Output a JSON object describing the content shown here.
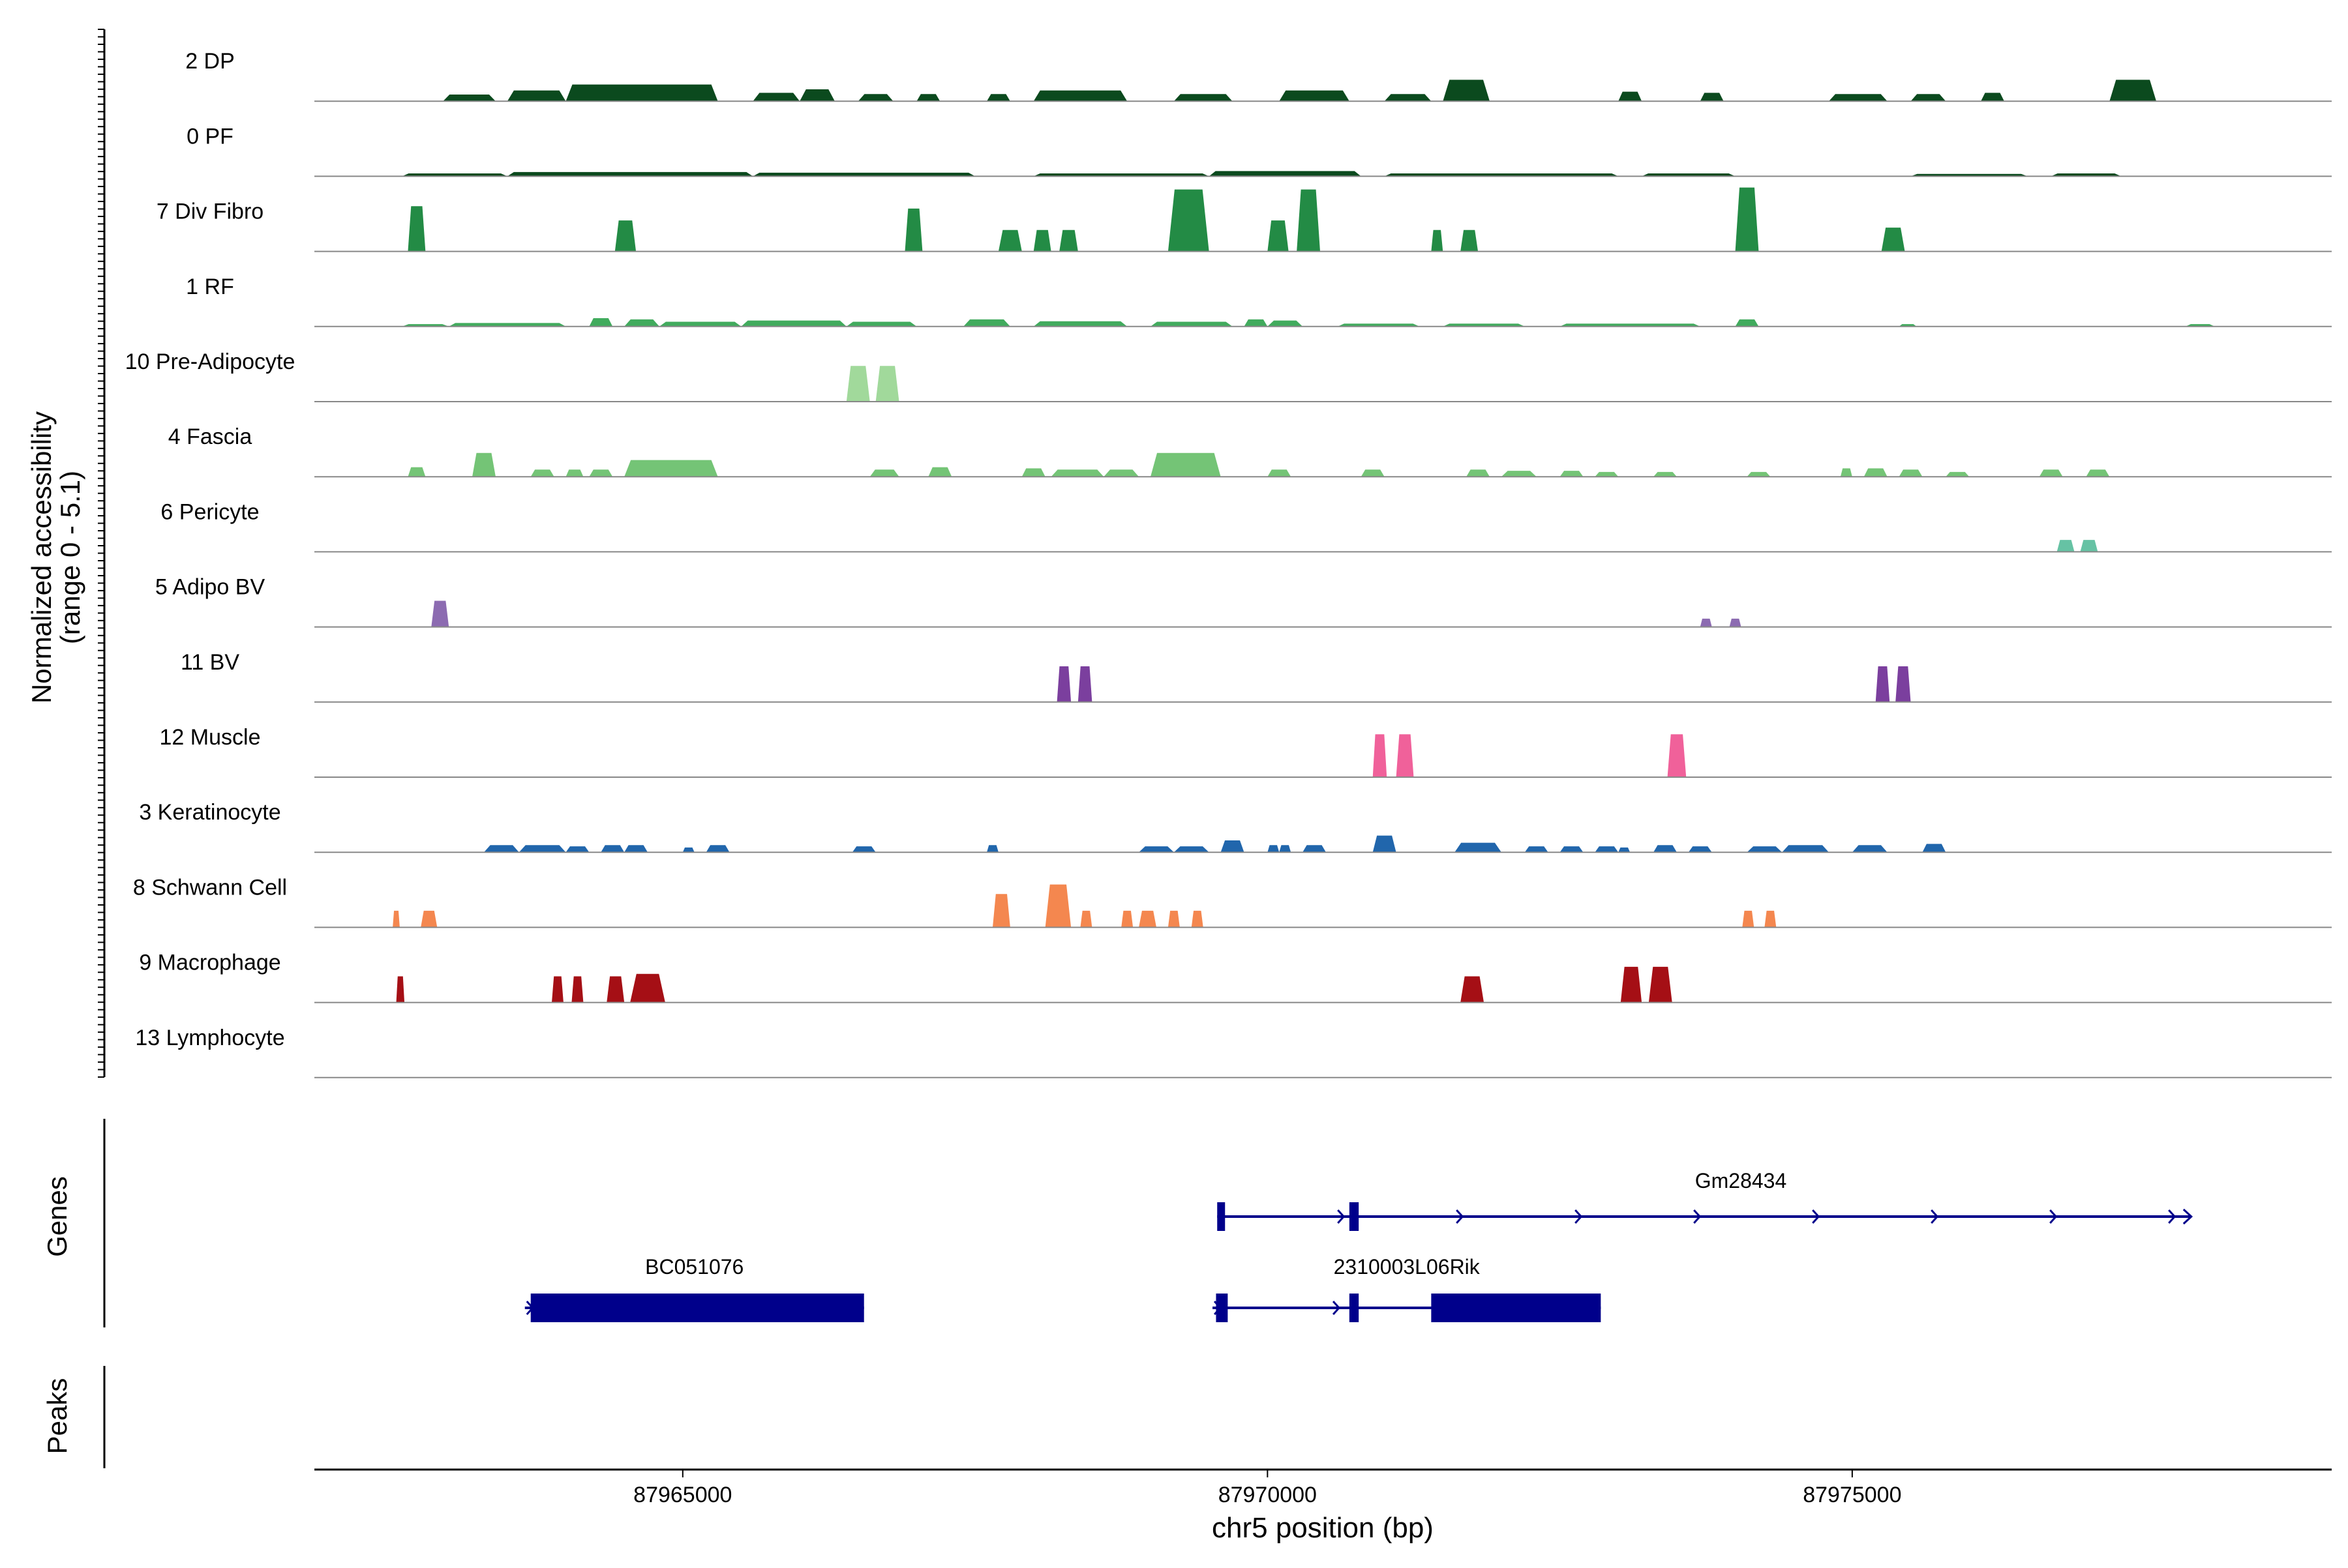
{
  "chart_data": {
    "type": "area",
    "title": "",
    "y_axis_label_line1": "Normalized accessibility",
    "y_axis_label_line2": "(range 0 - 5.1)",
    "ylim": [
      0,
      5.1
    ],
    "x_axis_label": "chr5 position (bp)",
    "xlim": [
      87961850,
      87979100
    ],
    "x_ticks": [
      87965000,
      87970000,
      87975000
    ],
    "x_tick_labels": [
      "87965000",
      "87970000",
      "87975000"
    ],
    "tracks": [
      {
        "name": "2 DP",
        "color": "#0b4a1e",
        "peaks": [
          [
            87962950,
            87963400,
            0.28
          ],
          [
            87963500,
            87964000,
            0.45
          ],
          [
            87964000,
            87965300,
            0.7
          ],
          [
            87965600,
            87966000,
            0.35
          ],
          [
            87966000,
            87966300,
            0.5
          ],
          [
            87966500,
            87966800,
            0.3
          ],
          [
            87967000,
            87967200,
            0.3
          ],
          [
            87967600,
            87967800,
            0.3
          ],
          [
            87968000,
            87968800,
            0.45
          ],
          [
            87969200,
            87969700,
            0.3
          ],
          [
            87970100,
            87970700,
            0.45
          ],
          [
            87971000,
            87971400,
            0.3
          ],
          [
            87971500,
            87971900,
            0.9
          ],
          [
            87973000,
            87973200,
            0.4
          ],
          [
            87973700,
            87973900,
            0.35
          ],
          [
            87974800,
            87975300,
            0.3
          ],
          [
            87975500,
            87975800,
            0.3
          ],
          [
            87976100,
            87976300,
            0.35
          ],
          [
            87977200,
            87977600,
            0.9
          ]
        ]
      },
      {
        "name": "0 PF",
        "color": "#0b4a1e",
        "peaks": [
          [
            87962600,
            87963500,
            0.12
          ],
          [
            87963500,
            87965600,
            0.18
          ],
          [
            87965600,
            87967500,
            0.15
          ],
          [
            87968000,
            87969500,
            0.12
          ],
          [
            87969500,
            87970800,
            0.22
          ],
          [
            87971000,
            87973000,
            0.12
          ],
          [
            87973200,
            87974000,
            0.12
          ],
          [
            87975500,
            87976500,
            0.1
          ],
          [
            87976700,
            87977300,
            0.12
          ]
        ]
      },
      {
        "name": "7 Div Fibro",
        "color": "#238b45",
        "peaks": [
          [
            87962650,
            87962800,
            1.9
          ],
          [
            87964420,
            87964600,
            1.3
          ],
          [
            87966900,
            87967050,
            1.8
          ],
          [
            87967700,
            87967900,
            0.9
          ],
          [
            87968000,
            87968150,
            0.9
          ],
          [
            87968220,
            87968380,
            0.9
          ],
          [
            87969150,
            87969500,
            2.6
          ],
          [
            87970000,
            87970180,
            1.3
          ],
          [
            87970250,
            87970450,
            2.6
          ],
          [
            87971400,
            87971500,
            0.9
          ],
          [
            87971650,
            87971800,
            0.9
          ],
          [
            87974000,
            87974200,
            2.8
          ],
          [
            87975250,
            87975450,
            1.0
          ]
        ]
      },
      {
        "name": "1 RF",
        "color": "#41ab5d",
        "peaks": [
          [
            87962600,
            87963000,
            0.1
          ],
          [
            87963000,
            87964000,
            0.15
          ],
          [
            87964200,
            87964400,
            0.35
          ],
          [
            87964500,
            87964800,
            0.3
          ],
          [
            87964800,
            87965500,
            0.2
          ],
          [
            87965500,
            87966400,
            0.25
          ],
          [
            87966400,
            87967000,
            0.2
          ],
          [
            87967400,
            87967800,
            0.3
          ],
          [
            87968000,
            87968800,
            0.22
          ],
          [
            87969000,
            87969700,
            0.2
          ],
          [
            87969800,
            87970000,
            0.3
          ],
          [
            87970000,
            87970300,
            0.25
          ],
          [
            87970600,
            87971300,
            0.12
          ],
          [
            87971500,
            87972200,
            0.12
          ],
          [
            87972500,
            87973700,
            0.12
          ],
          [
            87974000,
            87974200,
            0.3
          ],
          [
            87975400,
            87975550,
            0.1
          ],
          [
            87977850,
            87978100,
            0.1
          ]
        ]
      },
      {
        "name": "10 Pre-Adipocyte",
        "color": "#a1d99b",
        "peaks": [
          [
            87966400,
            87966600,
            1.5
          ],
          [
            87966650,
            87966850,
            1.5
          ]
        ]
      },
      {
        "name": "4 Fascia",
        "color": "#74c476",
        "peaks": [
          [
            87962650,
            87962800,
            0.4
          ],
          [
            87963200,
            87963400,
            1.0
          ],
          [
            87963700,
            87963900,
            0.3
          ],
          [
            87964000,
            87964150,
            0.3
          ],
          [
            87964200,
            87964400,
            0.3
          ],
          [
            87964500,
            87965300,
            0.7
          ],
          [
            87966600,
            87966850,
            0.3
          ],
          [
            87967100,
            87967300,
            0.4
          ],
          [
            87967900,
            87968100,
            0.35
          ],
          [
            87968150,
            87968600,
            0.3
          ],
          [
            87968600,
            87968900,
            0.3
          ],
          [
            87969000,
            87969600,
            1.0
          ],
          [
            87970000,
            87970200,
            0.3
          ],
          [
            87970800,
            87971000,
            0.3
          ],
          [
            87971700,
            87971900,
            0.3
          ],
          [
            87972000,
            87972300,
            0.25
          ],
          [
            87972500,
            87972700,
            0.25
          ],
          [
            87972800,
            87973000,
            0.2
          ],
          [
            87973300,
            87973500,
            0.2
          ],
          [
            87974100,
            87974300,
            0.2
          ],
          [
            87974900,
            87975000,
            0.35
          ],
          [
            87975100,
            87975300,
            0.35
          ],
          [
            87975400,
            87975600,
            0.3
          ],
          [
            87975800,
            87976000,
            0.2
          ],
          [
            87976600,
            87976800,
            0.3
          ],
          [
            87977000,
            87977200,
            0.3
          ]
        ]
      },
      {
        "name": "6 Pericyte",
        "color": "#66c2a4",
        "peaks": [
          [
            87976750,
            87976900,
            0.5
          ],
          [
            87976950,
            87977100,
            0.5
          ]
        ]
      },
      {
        "name": "5 Adipo BV",
        "color": "#8c6bb1",
        "peaks": [
          [
            87962850,
            87963000,
            1.1
          ],
          [
            87973700,
            87973800,
            0.35
          ],
          [
            87973950,
            87974050,
            0.35
          ]
        ]
      },
      {
        "name": "11 BV",
        "color": "#7b3f9e",
        "peaks": [
          [
            87968200,
            87968320,
            1.5
          ],
          [
            87968380,
            87968500,
            1.5
          ],
          [
            87975200,
            87975320,
            1.5
          ],
          [
            87975370,
            87975500,
            1.5
          ]
        ]
      },
      {
        "name": "12 Muscle",
        "color": "#f0619a",
        "peaks": [
          [
            87970900,
            87971020,
            1.8
          ],
          [
            87971100,
            87971250,
            1.8
          ],
          [
            87973420,
            87973580,
            1.8
          ]
        ]
      },
      {
        "name": "3 Keratinocyte",
        "color": "#2166ac",
        "peaks": [
          [
            87963300,
            87963600,
            0.3
          ],
          [
            87963600,
            87964000,
            0.3
          ],
          [
            87964000,
            87964200,
            0.25
          ],
          [
            87964300,
            87964500,
            0.3
          ],
          [
            87964500,
            87964700,
            0.3
          ],
          [
            87965000,
            87965100,
            0.2
          ],
          [
            87965200,
            87965400,
            0.3
          ],
          [
            87966450,
            87966650,
            0.25
          ],
          [
            87967600,
            87967700,
            0.3
          ],
          [
            87968900,
            87969200,
            0.25
          ],
          [
            87969200,
            87969500,
            0.25
          ],
          [
            87969600,
            87969800,
            0.5
          ],
          [
            87970000,
            87970100,
            0.3
          ],
          [
            87970100,
            87970200,
            0.3
          ],
          [
            87970300,
            87970500,
            0.3
          ],
          [
            87970900,
            87971100,
            0.7
          ],
          [
            87971600,
            87972000,
            0.4
          ],
          [
            87972200,
            87972400,
            0.25
          ],
          [
            87972500,
            87972700,
            0.25
          ],
          [
            87972800,
            87973000,
            0.25
          ],
          [
            87973000,
            87973100,
            0.2
          ],
          [
            87973300,
            87973500,
            0.3
          ],
          [
            87973600,
            87973800,
            0.25
          ],
          [
            87974100,
            87974400,
            0.25
          ],
          [
            87974400,
            87974800,
            0.3
          ],
          [
            87975000,
            87975300,
            0.3
          ],
          [
            87975600,
            87975800,
            0.35
          ]
        ]
      },
      {
        "name": "8 Schwann Cell",
        "color": "#f4874f",
        "peaks": [
          [
            87962520,
            87962580,
            0.7
          ],
          [
            87962760,
            87962900,
            0.7
          ],
          [
            87967650,
            87967800,
            1.4
          ],
          [
            87968100,
            87968320,
            1.8
          ],
          [
            87968400,
            87968500,
            0.7
          ],
          [
            87968750,
            87968850,
            0.7
          ],
          [
            87968900,
            87969050,
            0.7
          ],
          [
            87969150,
            87969250,
            0.7
          ],
          [
            87969350,
            87969450,
            0.7
          ],
          [
            87974060,
            87974160,
            0.7
          ],
          [
            87974250,
            87974350,
            0.7
          ]
        ]
      },
      {
        "name": "9 Macrophage",
        "color": "#a50f15",
        "peaks": [
          [
            87962550,
            87962620,
            1.1
          ],
          [
            87963880,
            87963980,
            1.1
          ],
          [
            87964050,
            87964150,
            1.1
          ],
          [
            87964350,
            87964500,
            1.1
          ],
          [
            87964550,
            87964850,
            1.2
          ],
          [
            87971650,
            87971850,
            1.1
          ],
          [
            87973020,
            87973200,
            1.5
          ],
          [
            87973260,
            87973460,
            1.5
          ]
        ]
      },
      {
        "name": "13 Lymphocyte",
        "color": "#084594",
        "peaks": []
      }
    ],
    "genes_label": "Genes",
    "peaks_label": "Peaks",
    "genes": [
      {
        "name": "Gm28434",
        "start": 87969570,
        "end": 87977900,
        "strand": "+",
        "row": 0,
        "exons": [
          [
            87969570,
            87969620
          ],
          [
            87970700,
            87970780
          ]
        ]
      },
      {
        "name": "BC051076",
        "start": 87963650,
        "end": 87966550,
        "strand": "+",
        "row": 1,
        "exons": [
          [
            87963700,
            87966550
          ]
        ]
      },
      {
        "name": "2310003L06Rik",
        "start": 87969530,
        "end": 87972850,
        "strand": "+",
        "row": 1,
        "exons": [
          [
            87969560,
            87969660
          ],
          [
            87970700,
            87970780
          ],
          [
            87971400,
            87972850
          ]
        ]
      }
    ],
    "colors": {
      "gene": "#00008b",
      "baseline": "#888888",
      "axis": "#000000"
    }
  }
}
